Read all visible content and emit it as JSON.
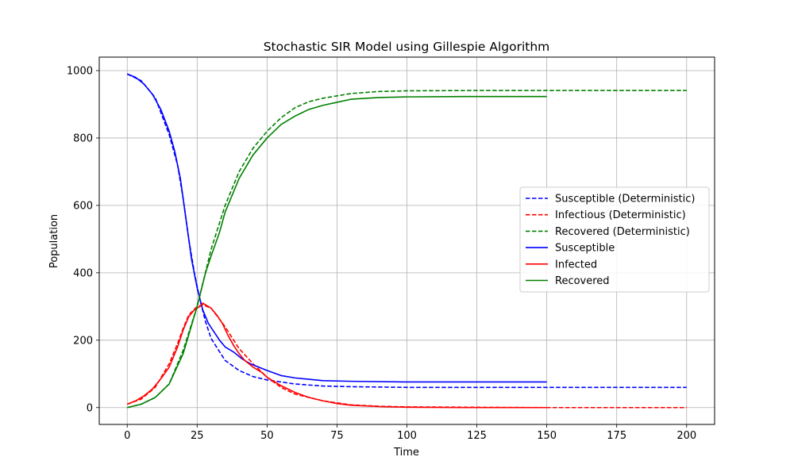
{
  "chart_data": {
    "type": "line",
    "title": "Stochastic SIR Model using Gillespie Algorithm",
    "xlabel": "Time",
    "ylabel": "Population",
    "xlim": [
      -10,
      210
    ],
    "ylim": [
      -50,
      1040
    ],
    "xticks": [
      0,
      25,
      50,
      75,
      100,
      125,
      150,
      175,
      200
    ],
    "yticks": [
      0,
      200,
      400,
      600,
      800,
      1000
    ],
    "grid": true,
    "legend_position": "center-right",
    "series": [
      {
        "name": "Susceptible (Deterministic)",
        "color": "#0000ff",
        "style": "dashed",
        "x": [
          0,
          5,
          10,
          15,
          18,
          20,
          22,
          24,
          26,
          28,
          30,
          35,
          40,
          45,
          50,
          60,
          70,
          80,
          100,
          125,
          150,
          175,
          200
        ],
        "y": [
          990,
          970,
          920,
          810,
          720,
          620,
          500,
          400,
          320,
          255,
          205,
          140,
          110,
          92,
          82,
          70,
          64,
          62,
          60,
          60,
          60,
          60,
          60
        ]
      },
      {
        "name": "Infectious (Deterministic)",
        "color": "#ff0000",
        "style": "dashed",
        "x": [
          0,
          5,
          10,
          15,
          18,
          20,
          22,
          25,
          27,
          30,
          35,
          40,
          45,
          50,
          55,
          60,
          70,
          80,
          90,
          100,
          125,
          150,
          200
        ],
        "y": [
          10,
          25,
          60,
          130,
          190,
          235,
          275,
          300,
          305,
          295,
          240,
          175,
          130,
          90,
          60,
          40,
          20,
          8,
          4,
          2,
          1,
          0,
          0
        ]
      },
      {
        "name": "Recovered (Deterministic)",
        "color": "#008000",
        "style": "dashed",
        "x": [
          0,
          5,
          10,
          15,
          20,
          25,
          30,
          35,
          40,
          45,
          50,
          55,
          60,
          65,
          70,
          75,
          80,
          90,
          100,
          125,
          150,
          175,
          200
        ],
        "y": [
          0,
          10,
          30,
          70,
          170,
          300,
          470,
          600,
          700,
          770,
          820,
          860,
          890,
          908,
          918,
          925,
          932,
          938,
          940,
          941,
          941,
          941,
          941
        ]
      },
      {
        "name": "Susceptible",
        "color": "#0000ff",
        "style": "solid",
        "x": [
          0,
          3,
          6,
          9,
          12,
          15,
          17,
          19,
          21,
          23,
          25,
          27,
          29,
          31,
          33,
          35,
          38,
          41,
          44,
          47,
          50,
          55,
          60,
          65,
          70,
          80,
          100,
          120,
          150
        ],
        "y": [
          990,
          980,
          960,
          930,
          885,
          820,
          760,
          680,
          560,
          440,
          355,
          290,
          250,
          225,
          200,
          180,
          165,
          145,
          130,
          120,
          110,
          95,
          88,
          84,
          80,
          78,
          76,
          76,
          76
        ]
      },
      {
        "name": "Infected",
        "color": "#ff0000",
        "style": "solid",
        "x": [
          0,
          3,
          6,
          9,
          12,
          15,
          18,
          20,
          22,
          24,
          26,
          27,
          28,
          30,
          32,
          34,
          36,
          38,
          40,
          42,
          45,
          48,
          50,
          55,
          60,
          65,
          70,
          75,
          80,
          90,
          100,
          120,
          150
        ],
        "y": [
          10,
          20,
          35,
          55,
          85,
          120,
          180,
          230,
          270,
          290,
          300,
          310,
          305,
          295,
          275,
          250,
          215,
          185,
          160,
          140,
          120,
          105,
          90,
          65,
          45,
          30,
          20,
          12,
          7,
          3,
          1,
          0,
          0
        ]
      },
      {
        "name": "Recovered",
        "color": "#008000",
        "style": "solid",
        "x": [
          0,
          5,
          10,
          15,
          20,
          25,
          28,
          30,
          33,
          35,
          38,
          40,
          45,
          50,
          55,
          60,
          65,
          70,
          75,
          80,
          90,
          100,
          120,
          150
        ],
        "y": [
          0,
          10,
          30,
          70,
          160,
          300,
          400,
          450,
          520,
          580,
          640,
          680,
          750,
          800,
          840,
          865,
          885,
          897,
          906,
          915,
          920,
          922,
          923,
          923
        ]
      }
    ]
  }
}
